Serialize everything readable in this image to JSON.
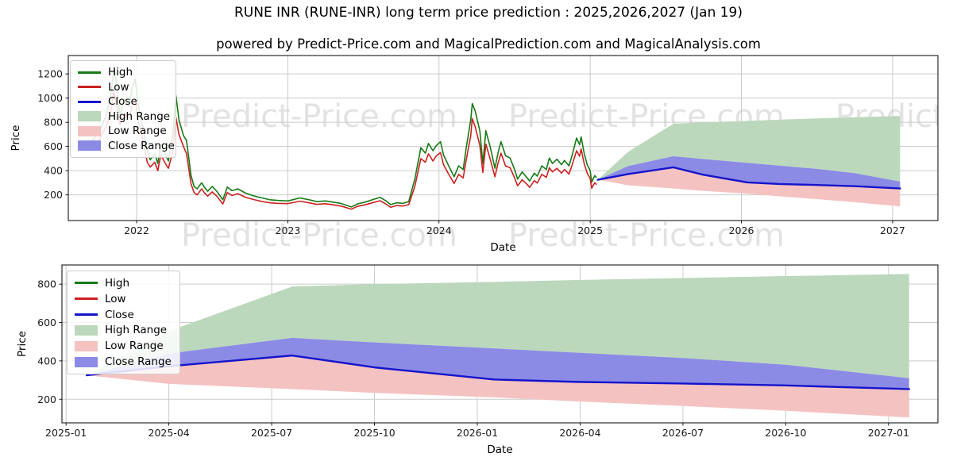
{
  "figure": {
    "title": "RUNE INR (RUNE-INR) long term price prediction : 2025,2026,2027 (Jan 19)",
    "subtitle": "powered by Predict-Price.com and MagicalPrediction.com and MagicalAnalysis.com",
    "watermark_text": "Predict-Price.com"
  },
  "colors": {
    "high_line": "#157a15",
    "low_line": "#cc2121",
    "close_line": "#1414cc",
    "high_range_fill": "#bcd8bc",
    "low_range_fill": "#f5c2c2",
    "close_range_fill": "#8b8be6",
    "grid": "#cacaca",
    "spine": "#000000",
    "tick_text": "#1a1a1a"
  },
  "legend": {
    "items": [
      {
        "label": "High",
        "swatch": "line",
        "color": "#157a15"
      },
      {
        "label": "Low",
        "swatch": "line",
        "color": "#cc2121"
      },
      {
        "label": "Close",
        "swatch": "line",
        "color": "#1414cc"
      },
      {
        "label": "High Range",
        "swatch": "patch",
        "color": "#bcd8bc"
      },
      {
        "label": "Low Range",
        "swatch": "patch",
        "color": "#f5c2c2"
      },
      {
        "label": "Close Range",
        "swatch": "patch",
        "color": "#8b8be6"
      }
    ]
  },
  "chart_data": [
    {
      "type": "line",
      "name": "history-plus-forecast",
      "xlabel": "Date",
      "ylabel": "Price",
      "xlim": [
        2021.548,
        2027.3
      ],
      "ylim": [
        -12,
        1352
      ],
      "grid": true,
      "legend_position": "upper left",
      "xticks": [
        {
          "v": 2022,
          "label": "2022"
        },
        {
          "v": 2023,
          "label": "2023"
        },
        {
          "v": 2024,
          "label": "2024"
        },
        {
          "v": 2025,
          "label": "2025"
        },
        {
          "v": 2026,
          "label": "2026"
        },
        {
          "v": 2027,
          "label": "2027"
        }
      ],
      "yticks": [
        {
          "v": 200,
          "label": "200"
        },
        {
          "v": 400,
          "label": "400"
        },
        {
          "v": 600,
          "label": "600"
        },
        {
          "v": 800,
          "label": "800"
        },
        {
          "v": 1000,
          "label": "1000"
        },
        {
          "v": 1200,
          "label": "1200"
        }
      ],
      "series": {
        "historical": {
          "x": [
            2021.7,
            2021.74,
            2021.77,
            2021.8,
            2021.83,
            2021.85,
            2021.87,
            2021.89,
            2021.92,
            2021.95,
            2021.97,
            2021.99,
            2022.01,
            2022.04,
            2022.07,
            2022.09,
            2022.12,
            2022.14,
            2022.16,
            2022.19,
            2022.21,
            2022.24,
            2022.26,
            2022.28,
            2022.31,
            2022.33,
            2022.36,
            2022.38,
            2022.4,
            2022.43,
            2022.45,
            2022.47,
            2022.5,
            2022.53,
            2022.57,
            2022.6,
            2022.63,
            2022.67,
            2022.72,
            2022.78,
            2022.83,
            2022.88,
            2022.93,
            2023.0,
            2023.08,
            2023.14,
            2023.19,
            2023.25,
            2023.3,
            2023.35,
            2023.42,
            2023.46,
            2023.51,
            2023.56,
            2023.61,
            2023.65,
            2023.68,
            2023.72,
            2023.76,
            2023.8,
            2023.84,
            2023.88,
            2023.91,
            2023.93,
            2023.96,
            2023.98,
            2024.01,
            2024.03,
            2024.06,
            2024.1,
            2024.13,
            2024.16,
            2024.18,
            2024.21,
            2024.22,
            2024.24,
            2024.27,
            2024.29,
            2024.31,
            2024.34,
            2024.37,
            2024.39,
            2024.41,
            2024.44,
            2024.47,
            2024.5,
            2024.52,
            2024.55,
            2024.58,
            2024.6,
            2024.63,
            2024.65,
            2024.68,
            2024.71,
            2024.73,
            2024.75,
            2024.78,
            2024.81,
            2024.83,
            2024.86,
            2024.88,
            2024.91,
            2024.93,
            2024.94,
            2024.96,
            2024.98,
            2025.0,
            2025.01,
            2025.03,
            2025.04
          ],
          "high": [
            640,
            700,
            770,
            860,
            1030,
            1245,
            1090,
            860,
            1000,
            930,
            1080,
            1160,
            940,
            760,
            560,
            490,
            540,
            460,
            620,
            540,
            480,
            700,
            1020,
            820,
            690,
            650,
            360,
            270,
            250,
            300,
            260,
            230,
            270,
            230,
            160,
            265,
            235,
            250,
            215,
            190,
            175,
            160,
            155,
            150,
            175,
            160,
            145,
            150,
            140,
            130,
            100,
            125,
            140,
            160,
            180,
            150,
            120,
            135,
            130,
            145,
            330,
            590,
            545,
            625,
            565,
            605,
            640,
            530,
            450,
            350,
            440,
            410,
            590,
            820,
            955,
            890,
            730,
            460,
            730,
            590,
            420,
            545,
            640,
            525,
            505,
            410,
            330,
            390,
            345,
            315,
            380,
            355,
            440,
            410,
            505,
            460,
            495,
            450,
            485,
            440,
            525,
            670,
            615,
            680,
            545,
            450,
            400,
            305,
            360,
            345
          ],
          "low": [
            580,
            630,
            700,
            770,
            890,
            1060,
            930,
            780,
            870,
            830,
            940,
            990,
            820,
            660,
            470,
            430,
            470,
            400,
            530,
            460,
            420,
            560,
            840,
            700,
            600,
            540,
            290,
            220,
            200,
            250,
            215,
            190,
            225,
            190,
            125,
            220,
            195,
            210,
            180,
            160,
            145,
            135,
            130,
            128,
            148,
            135,
            122,
            127,
            118,
            108,
            82,
            105,
            118,
            135,
            152,
            124,
            98,
            112,
            108,
            120,
            270,
            500,
            470,
            540,
            480,
            520,
            550,
            450,
            380,
            295,
            370,
            340,
            490,
            690,
            830,
            760,
            610,
            385,
            620,
            490,
            350,
            460,
            545,
            440,
            425,
            340,
            275,
            325,
            290,
            262,
            318,
            298,
            370,
            345,
            425,
            390,
            420,
            380,
            410,
            372,
            445,
            565,
            520,
            580,
            460,
            380,
            335,
            255,
            300,
            288
          ]
        },
        "prediction": {
          "x": [
            2025.05,
            2025.25,
            2025.55,
            2025.75,
            2026.04,
            2026.25,
            2026.5,
            2026.75,
            2027.05
          ],
          "close": [
            325,
            372,
            428,
            366,
            303,
            290,
            282,
            272,
            253
          ],
          "close_top": [
            325,
            438,
            520,
            496,
            465,
            442,
            415,
            380,
            310
          ],
          "low_bottom": [
            325,
            280,
            253,
            233,
            210,
            188,
            165,
            140,
            105
          ],
          "high_top": [
            325,
            555,
            788,
            800,
            812,
            822,
            832,
            842,
            853
          ]
        }
      }
    },
    {
      "type": "line",
      "name": "forecast-detail",
      "xlabel": "Date",
      "ylabel": "Price",
      "xlim": [
        2024.99,
        2027.12
      ],
      "ylim": [
        77,
        900
      ],
      "grid": true,
      "legend_position": "upper left",
      "xticks": [
        {
          "v": 2025.0,
          "label": "2025-01"
        },
        {
          "v": 2025.25,
          "label": "2025-04"
        },
        {
          "v": 2025.5,
          "label": "2025-07"
        },
        {
          "v": 2025.75,
          "label": "2025-10"
        },
        {
          "v": 2026.0,
          "label": "2026-01"
        },
        {
          "v": 2026.25,
          "label": "2026-04"
        },
        {
          "v": 2026.5,
          "label": "2026-07"
        },
        {
          "v": 2026.75,
          "label": "2026-10"
        },
        {
          "v": 2027.0,
          "label": "2027-01"
        }
      ],
      "yticks": [
        {
          "v": 200,
          "label": "200"
        },
        {
          "v": 400,
          "label": "400"
        },
        {
          "v": 600,
          "label": "600"
        },
        {
          "v": 800,
          "label": "800"
        }
      ],
      "series": {
        "prediction_ref": "chart_data.0.series.prediction"
      }
    }
  ]
}
